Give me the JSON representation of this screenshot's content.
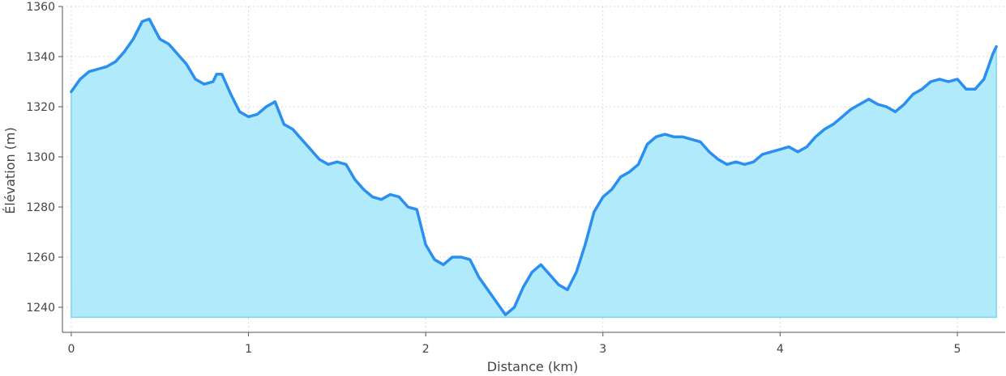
{
  "chart_data": {
    "type": "area",
    "title": "",
    "xlabel": "Distance (km)",
    "ylabel": "Élévation (m)",
    "xlim": [
      -0.05,
      5.27
    ],
    "ylim": [
      1230,
      1360
    ],
    "x_ticks": [
      "0",
      "1",
      "2",
      "3",
      "4",
      "5"
    ],
    "y_ticks": [
      "1240",
      "1260",
      "1280",
      "1300",
      "1320",
      "1340",
      "1360"
    ],
    "x_tick_values": [
      0,
      1,
      2,
      3,
      4,
      5
    ],
    "y_tick_values": [
      1240,
      1260,
      1280,
      1300,
      1320,
      1340,
      1360
    ],
    "baseline": 1236,
    "grid": true,
    "colors": {
      "line": "#2b8ff0",
      "fill": "#b0eafb",
      "fill_edge": "#7fd4ef"
    },
    "x": [
      0,
      0.05,
      0.1,
      0.15,
      0.2,
      0.25,
      0.3,
      0.35,
      0.4,
      0.44,
      0.5,
      0.55,
      0.6,
      0.65,
      0.7,
      0.75,
      0.8,
      0.82,
      0.85,
      0.9,
      0.95,
      1.0,
      1.05,
      1.1,
      1.15,
      1.2,
      1.25,
      1.3,
      1.35,
      1.4,
      1.45,
      1.5,
      1.55,
      1.6,
      1.65,
      1.7,
      1.75,
      1.8,
      1.85,
      1.9,
      1.95,
      2.0,
      2.05,
      2.1,
      2.15,
      2.2,
      2.25,
      2.3,
      2.35,
      2.4,
      2.45,
      2.5,
      2.55,
      2.6,
      2.65,
      2.7,
      2.75,
      2.8,
      2.85,
      2.9,
      2.95,
      3.0,
      3.05,
      3.1,
      3.15,
      3.2,
      3.25,
      3.3,
      3.35,
      3.4,
      3.45,
      3.5,
      3.55,
      3.6,
      3.65,
      3.7,
      3.75,
      3.8,
      3.85,
      3.9,
      3.95,
      4.0,
      4.05,
      4.1,
      4.15,
      4.2,
      4.25,
      4.3,
      4.35,
      4.4,
      4.45,
      4.5,
      4.55,
      4.6,
      4.65,
      4.7,
      4.75,
      4.8,
      4.85,
      4.9,
      4.95,
      5.0,
      5.05,
      5.1,
      5.15,
      5.2,
      5.22
    ],
    "values": [
      1326,
      1331,
      1334,
      1335,
      1336,
      1338,
      1342,
      1347,
      1354,
      1355,
      1347,
      1345,
      1341,
      1337,
      1331,
      1329,
      1330,
      1333,
      1333,
      1325,
      1318,
      1316,
      1317,
      1320,
      1322,
      1313,
      1311,
      1307,
      1303,
      1299,
      1297,
      1298,
      1297,
      1291,
      1287,
      1284,
      1283,
      1285,
      1284,
      1280,
      1279,
      1265,
      1259,
      1257,
      1260,
      1260,
      1259,
      1252,
      1247,
      1242,
      1237,
      1240,
      1248,
      1254,
      1257,
      1253,
      1249,
      1247,
      1254,
      1265,
      1278,
      1284,
      1287,
      1292,
      1294,
      1297,
      1305,
      1308,
      1309,
      1308,
      1308,
      1307,
      1306,
      1302,
      1299,
      1297,
      1298,
      1297,
      1298,
      1301,
      1302,
      1303,
      1304,
      1302,
      1304,
      1308,
      1311,
      1313,
      1316,
      1319,
      1321,
      1323,
      1321,
      1320,
      1318,
      1321,
      1325,
      1327,
      1330,
      1331,
      1330,
      1331,
      1327,
      1327,
      1331,
      1341,
      1344
    ]
  }
}
